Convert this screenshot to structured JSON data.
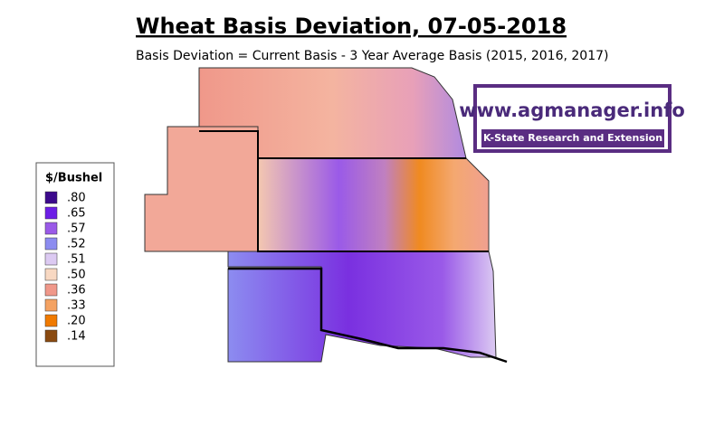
{
  "title": "Wheat Basis Deviation, 07-05-2018",
  "subtitle": "Basis Deviation = Current Basis - 3 Year Average Basis (2015, 2016, 2017)",
  "legend": {
    "title": "$/Bushel",
    "items": [
      {
        "label": ".80",
        "color": "#3c0a8c"
      },
      {
        "label": ".65",
        "color": "#6c1ee6"
      },
      {
        "label": ".57",
        "color": "#9a5ae8"
      },
      {
        "label": ".52",
        "color": "#8c8cf0"
      },
      {
        "label": ".51",
        "color": "#dccaf2"
      },
      {
        "label": ".50",
        "color": "#f8d8c2"
      },
      {
        "label": ".36",
        "color": "#f0988a"
      },
      {
        "label": ".33",
        "color": "#f4a262"
      },
      {
        "label": ".20",
        "color": "#f07a00"
      },
      {
        "label": ".14",
        "color": "#8a4a10"
      }
    ]
  },
  "logo": {
    "url": "www.agmanager.info",
    "org": "K-State Research and Extension"
  }
}
